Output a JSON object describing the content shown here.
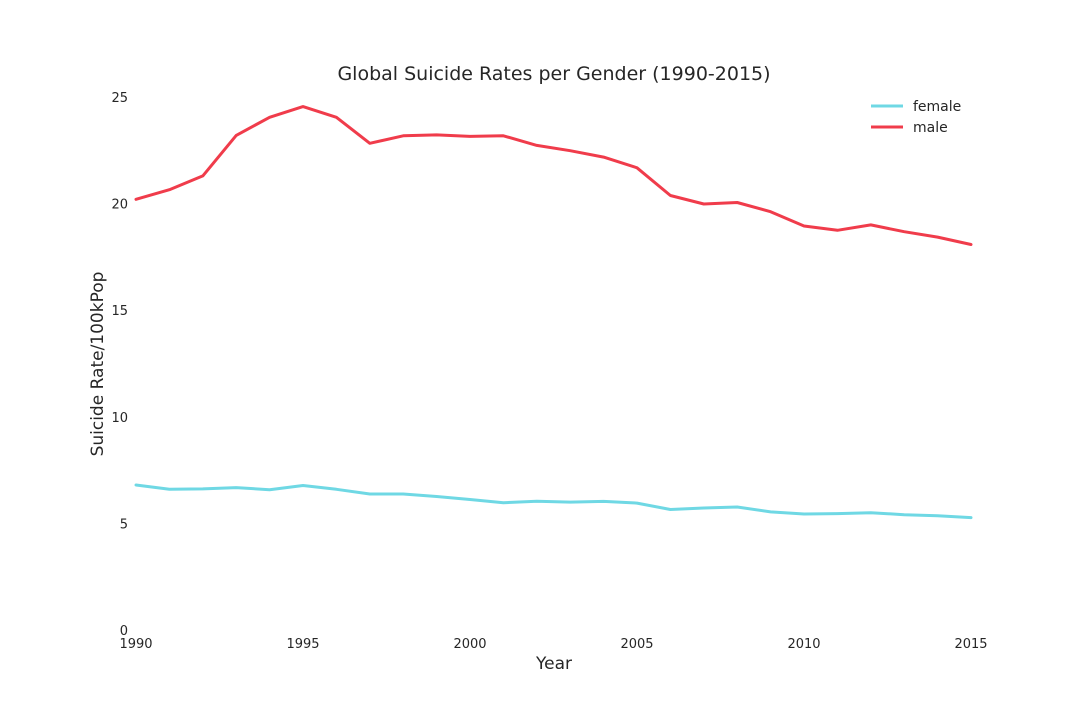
{
  "chart_data": {
    "type": "line",
    "title": "Global Suicide Rates per Gender (1990-2015)",
    "xlabel": "Year",
    "ylabel": "Suicide Rate/100kPop",
    "xlim": [
      1990,
      2015
    ],
    "ylim": [
      0,
      25
    ],
    "x_ticks": [
      1990,
      1995,
      2000,
      2005,
      2010,
      2015
    ],
    "y_ticks": [
      0,
      5,
      10,
      15,
      20,
      25
    ],
    "grid": false,
    "legend_position": "top-right",
    "x": [
      1990,
      1991,
      1992,
      1993,
      1994,
      1995,
      1996,
      1997,
      1998,
      1999,
      2000,
      2001,
      2002,
      2003,
      2004,
      2005,
      2006,
      2007,
      2008,
      2009,
      2010,
      2011,
      2012,
      2013,
      2014,
      2015
    ],
    "series": [
      {
        "name": "female",
        "color": "#6fd8e4",
        "values": [
          6.8,
          6.6,
          6.62,
          6.68,
          6.58,
          6.78,
          6.6,
          6.38,
          6.38,
          6.26,
          6.12,
          5.97,
          6.04,
          6.0,
          6.03,
          5.95,
          5.65,
          5.72,
          5.77,
          5.54,
          5.44,
          5.46,
          5.5,
          5.41,
          5.36,
          5.27
        ]
      },
      {
        "name": "male",
        "color": "#f03c4b",
        "values": [
          20.2,
          20.65,
          21.3,
          23.2,
          24.05,
          24.55,
          24.05,
          22.83,
          23.18,
          23.22,
          23.15,
          23.18,
          22.73,
          22.48,
          22.18,
          21.68,
          20.38,
          19.98,
          20.05,
          19.62,
          18.95,
          18.75,
          19.0,
          18.68,
          18.43,
          18.08
        ]
      }
    ]
  }
}
